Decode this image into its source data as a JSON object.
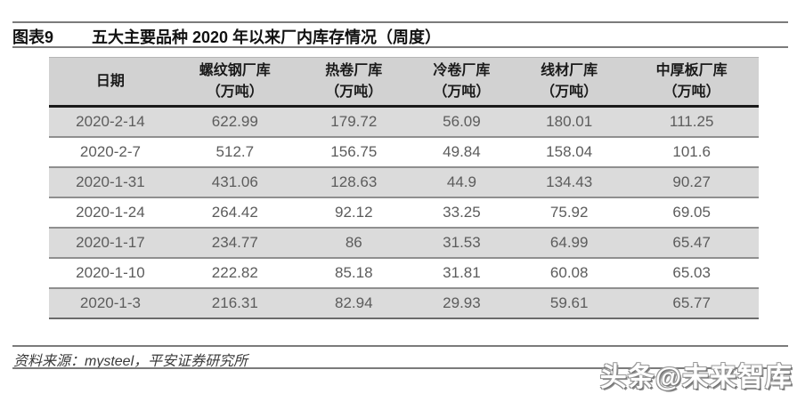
{
  "title": {
    "tag": "图表9",
    "text": "五大主要品种 2020 年以来厂内库存情况（周度）"
  },
  "table": {
    "columns": [
      {
        "label": "日期",
        "unit": ""
      },
      {
        "label": "螺纹钢厂库",
        "unit": "（万吨）"
      },
      {
        "label": "热卷厂库",
        "unit": "（万吨）"
      },
      {
        "label": "冷卷厂库",
        "unit": "（万吨）"
      },
      {
        "label": "线材厂库",
        "unit": "（万吨）"
      },
      {
        "label": "中厚板厂库",
        "unit": "（万吨）"
      }
    ],
    "rows": [
      [
        "2020-2-14",
        "622.99",
        "179.72",
        "56.09",
        "180.01",
        "111.25"
      ],
      [
        "2020-2-7",
        "512.7",
        "156.75",
        "49.84",
        "158.04",
        "101.6"
      ],
      [
        "2020-1-31",
        "431.06",
        "128.63",
        "44.9",
        "134.43",
        "90.27"
      ],
      [
        "2020-1-24",
        "264.42",
        "92.12",
        "33.25",
        "75.92",
        "69.05"
      ],
      [
        "2020-1-17",
        "234.77",
        "86",
        "31.53",
        "64.99",
        "65.47"
      ],
      [
        "2020-1-10",
        "222.82",
        "85.18",
        "31.81",
        "60.08",
        "65.03"
      ],
      [
        "2020-1-3",
        "216.31",
        "82.94",
        "29.93",
        "59.61",
        "65.77"
      ]
    ]
  },
  "source": "资料来源：mysteel，平安证券研究所",
  "watermark": "头条@未来智库",
  "colors": {
    "header_bg": "#d2d2d2",
    "shaded_row_bg": "#dbdbdb",
    "rule_gray": "#7b7b7b",
    "header_underline": "#1a1a1a",
    "data_text": "#5c5c5c",
    "title_text": "#111111"
  }
}
